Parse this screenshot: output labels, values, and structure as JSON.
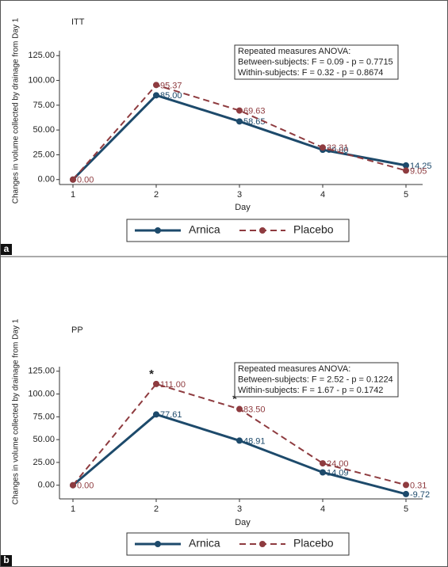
{
  "chart_data": [
    {
      "type": "line",
      "panel_label": "a",
      "title": "ITT",
      "x_label": "Day",
      "y_label": "Changes in volume collected by drainage from Day 1",
      "annotation": [
        "Repeated measures ANOVA:",
        "Between-subjects: F = 0.09 - p = 0.7715",
        "Within-subjects: F = 0.32 - p = 0.8674"
      ],
      "x": [
        1,
        2,
        3,
        4,
        5
      ],
      "xlim": [
        0.8,
        5.2
      ],
      "xticks": [
        1,
        2,
        3,
        4,
        5
      ],
      "ylim": [
        -5,
        130
      ],
      "yticks": [
        {
          "value": 0,
          "label": "0.00"
        },
        {
          "value": 25,
          "label": "25.00"
        },
        {
          "value": 50,
          "label": "50.00"
        },
        {
          "value": 75,
          "label": "75.00"
        },
        {
          "value": 100,
          "label": "100.00"
        },
        {
          "value": 125,
          "label": "125.00"
        }
      ],
      "series": [
        {
          "name": "Arnica",
          "color": "#1d4a6b",
          "dashed": false,
          "values": [
            0,
            85,
            58.65,
            30,
            14.25
          ],
          "value_labels": [
            null,
            "85.00",
            "58.65",
            "30.00",
            "14.25"
          ]
        },
        {
          "name": "Placebo",
          "color": "#8e3b3f",
          "dashed": true,
          "values": [
            0,
            95.37,
            69.63,
            32.31,
            9.05
          ],
          "value_labels": [
            "0.00",
            "95.37",
            "69.63",
            "32.31",
            "9.05"
          ]
        }
      ],
      "significance": []
    },
    {
      "type": "line",
      "panel_label": "b",
      "title": "PP",
      "x_label": "Day",
      "y_label": "Changes in volume collected by drainage from Day 1",
      "annotation": [
        "Repeated measures ANOVA:",
        "Between-subjects: F = 2.52 - p = 0.1224",
        "Within-subjects: F = 1.67 - p = 0.1742"
      ],
      "x": [
        1,
        2,
        3,
        4,
        5
      ],
      "xlim": [
        0.8,
        5.2
      ],
      "xticks": [
        1,
        2,
        3,
        4,
        5
      ],
      "ylim": [
        -15,
        130
      ],
      "yticks": [
        {
          "value": 0,
          "label": "0.00"
        },
        {
          "value": 25,
          "label": "25.00"
        },
        {
          "value": 50,
          "label": "50.00"
        },
        {
          "value": 75,
          "label": "75.00"
        },
        {
          "value": 100,
          "label": "100.00"
        },
        {
          "value": 125,
          "label": "125.00"
        }
      ],
      "series": [
        {
          "name": "Arnica",
          "color": "#1d4a6b",
          "dashed": false,
          "values": [
            0,
            77.61,
            48.91,
            14.09,
            -9.72
          ],
          "value_labels": [
            null,
            "77.61",
            "48.91",
            "14.09",
            "-9.72"
          ]
        },
        {
          "name": "Placebo",
          "color": "#8e3b3f",
          "dashed": true,
          "values": [
            0,
            111,
            83.5,
            24,
            0.31
          ],
          "value_labels": [
            "0.00",
            "111.00",
            "83.50",
            "24.00",
            "0.31"
          ]
        }
      ],
      "significance": [
        {
          "x": 2,
          "label": "*"
        },
        {
          "x": 3,
          "label": "*"
        }
      ]
    }
  ]
}
